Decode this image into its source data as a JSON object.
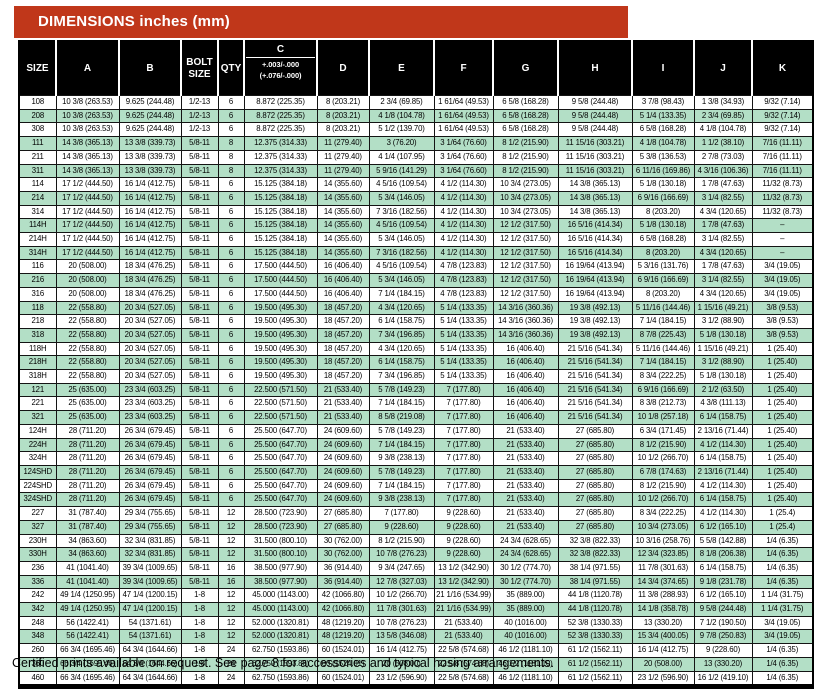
{
  "title": "DIMENSIONS inches (mm)",
  "colors": {
    "title_bar_bg": "#c0371a",
    "header_bg": "#000000",
    "row_alt_bg": "#b3dfc6",
    "text": "#000000"
  },
  "table": {
    "columns": [
      "SIZE",
      "A",
      "B",
      "BOLT SIZE",
      "QTY",
      "C",
      "D",
      "E",
      "F",
      "G",
      "H",
      "I",
      "J",
      "K"
    ],
    "c_header": {
      "label": "C",
      "tolerance_line1": "+.003/-.000",
      "tolerance_line2": "(+.076/-.000)"
    },
    "rows": [
      [
        "108",
        "10 3/8 (263.53)",
        "9.625 (244.48)",
        "1/2-13",
        "6",
        "8.872 (225.35)",
        "8 (203.21)",
        "2 3/4 (69.85)",
        "1 61/64 (49.53)",
        "6 5/8 (168.28)",
        "9 5/8 (244.48)",
        "3 7/8 (98.43)",
        "1 3/8 (34.93)",
        "9/32 (7.14)"
      ],
      [
        "208",
        "10 3/8 (263.53)",
        "9.625 (244.48)",
        "1/2-13",
        "6",
        "8.872 (225.35)",
        "8 (203.21)",
        "4 1/8 (104.78)",
        "1 61/64 (49.53)",
        "6 5/8 (168.28)",
        "9 5/8 (244.48)",
        "5 1/4 (133.35)",
        "2 3/4 (69.85)",
        "9/32 (7.14)"
      ],
      [
        "308",
        "10 3/8 (263.53)",
        "9.625 (244.48)",
        "1/2-13",
        "6",
        "8.872 (225.35)",
        "8 (203.21)",
        "5 1/2 (139.70)",
        "1 61/64 (49.53)",
        "6 5/8 (168.28)",
        "9 5/8 (244.48)",
        "6 5/8 (168.28)",
        "4 1/8 (104.78)",
        "9/32 (7.14)"
      ],
      [
        "111",
        "14 3/8 (365.13)",
        "13 3/8 (339.73)",
        "5/8-11",
        "8",
        "12.375 (314.33)",
        "11 (279.40)",
        "3 (76.20)",
        "3 1/64 (76.60)",
        "8 1/2 (215.90)",
        "11 15/16 (303.21)",
        "4 1/8 (104.78)",
        "1 1/2 (38.10)",
        "7/16 (11.11)"
      ],
      [
        "211",
        "14 3/8 (365.13)",
        "13 3/8 (339.73)",
        "5/8-11",
        "8",
        "12.375 (314.33)",
        "11 (279.40)",
        "4 1/4 (107.95)",
        "3 1/64 (76.60)",
        "8 1/2 (215.90)",
        "11 15/16 (303.21)",
        "5 3/8 (136.53)",
        "2 7/8 (73.03)",
        "7/16 (11.11)"
      ],
      [
        "311",
        "14 3/8 (365.13)",
        "13 3/8 (339.73)",
        "5/8-11",
        "8",
        "12.375 (314.33)",
        "11 (279.40)",
        "5 9/16 (141.29)",
        "3 1/64 (76.60)",
        "8 1/2 (215.90)",
        "11 15/16 (303.21)",
        "6 11/16 (169.86)",
        "4 3/16 (106.36)",
        "7/16 (11.11)"
      ],
      [
        "114",
        "17 1/2 (444.50)",
        "16 1/4 (412.75)",
        "5/8-11",
        "6",
        "15.125 (384.18)",
        "14 (355.60)",
        "4 5/16 (109.54)",
        "4 1/2 (114.30)",
        "10 3/4 (273.05)",
        "14 3/8 (365.13)",
        "5 1/8 (130.18)",
        "1 7/8 (47.63)",
        "11/32 (8.73)"
      ],
      [
        "214",
        "17 1/2 (444.50)",
        "16 1/4 (412.75)",
        "5/8-11",
        "6",
        "15.125 (384.18)",
        "14 (355.60)",
        "5 3/4 (146.05)",
        "4 1/2 (114.30)",
        "10 3/4 (273.05)",
        "14 3/8 (365.13)",
        "6 9/16 (166.69)",
        "3 1/4 (82.55)",
        "11/32 (8.73)"
      ],
      [
        "314",
        "17 1/2 (444.50)",
        "16 1/4 (412.75)",
        "5/8-11",
        "6",
        "15.125 (384.18)",
        "14 (355.60)",
        "7 3/16 (182.56)",
        "4 1/2 (114.30)",
        "10 3/4 (273.05)",
        "14 3/8 (365.13)",
        "8 (203.20)",
        "4 3/4 (120.65)",
        "11/32 (8.73)"
      ],
      [
        "114H",
        "17 1/2 (444.50)",
        "16 1/4 (412.75)",
        "5/8-11",
        "6",
        "15.125 (384.18)",
        "14 (355.60)",
        "4 5/16 (109.54)",
        "4 1/2 (114.30)",
        "12 1/2 (317.50)",
        "16 5/16 (414.34)",
        "5 1/8 (130.18)",
        "1 7/8 (47.63)",
        "–"
      ],
      [
        "214H",
        "17 1/2 (444.50)",
        "16 1/4 (412.75)",
        "5/8-11",
        "6",
        "15.125 (384.18)",
        "14 (355.60)",
        "5 3/4 (146.05)",
        "4 1/2 (114.30)",
        "12 1/2 (317.50)",
        "16 5/16 (414.34)",
        "6 5/8 (168.28)",
        "3 1/4 (82.55)",
        "–"
      ],
      [
        "314H",
        "17 1/2 (444.50)",
        "16 1/4 (412.75)",
        "5/8-11",
        "6",
        "15.125 (384.18)",
        "14 (355.60)",
        "7 3/16 (182.56)",
        "4 1/2 (114.30)",
        "12 1/2 (317.50)",
        "16 5/16 (414.34)",
        "8 (203.20)",
        "4 3/4 (120.65)",
        "–"
      ],
      [
        "116",
        "20 (508.00)",
        "18 3/4 (476.25)",
        "5/8-11",
        "6",
        "17.500 (444.50)",
        "16 (406.40)",
        "4 5/16 (109.54)",
        "4 7/8 (123.83)",
        "12 1/2 (317.50)",
        "16 19/64 (413.94)",
        "5 3/16 (131.76)",
        "1 7/8 (47.63)",
        "3/4 (19.05)"
      ],
      [
        "216",
        "20 (508.00)",
        "18 3/4 (476.25)",
        "5/8-11",
        "6",
        "17.500 (444.50)",
        "16 (406.40)",
        "5 3/4 (146.05)",
        "4 7/8 (123.83)",
        "12 1/2 (317.50)",
        "16 19/64 (413.94)",
        "6 9/16 (166.69)",
        "3 1/4 (82.55)",
        "3/4 (19.05)"
      ],
      [
        "316",
        "20 (508.00)",
        "18 3/4 (476.25)",
        "5/8-11",
        "6",
        "17.500 (444.50)",
        "16 (406.40)",
        "7 1/4 (184.15)",
        "4 7/8 (123.83)",
        "12 1/2 (317.50)",
        "16 19/64 (413.94)",
        "8 (203.20)",
        "4 3/4 (120.65)",
        "3/4 (19.05)"
      ],
      [
        "118",
        "22 (558.80)",
        "20 3/4 (527.05)",
        "5/8-11",
        "6",
        "19.500 (495.30)",
        "18 (457.20)",
        "4 3/4 (120.65)",
        "5 1/4 (133.35)",
        "14 3/16 (360.36)",
        "19 3/8 (492.13)",
        "5 11/16 (144.46)",
        "1 15/16 (49.21)",
        "3/8 (9.53)"
      ],
      [
        "218",
        "22 (558.80)",
        "20 3/4 (527.05)",
        "5/8-11",
        "6",
        "19.500 (495.30)",
        "18 (457.20)",
        "6 1/4 (158.75)",
        "5 1/4 (133.35)",
        "14 3/16 (360.36)",
        "19 3/8 (492.13)",
        "7 1/4 (184.15)",
        "3 1/2 (88.90)",
        "3/8 (9.53)"
      ],
      [
        "318",
        "22 (558.80)",
        "20 3/4 (527.05)",
        "5/8-11",
        "6",
        "19.500 (495.30)",
        "18 (457.20)",
        "7 3/4 (196.85)",
        "5 1/4 (133.35)",
        "14 3/16 (360.36)",
        "19 3/8 (492.13)",
        "8 7/8 (225.43)",
        "5 1/8 (130.18)",
        "3/8 (9.53)"
      ],
      [
        "118H",
        "22 (558.80)",
        "20 3/4 (527.05)",
        "5/8-11",
        "6",
        "19.500 (495.30)",
        "18 (457.20)",
        "4 3/4 (120.65)",
        "5 1/4 (133.35)",
        "16 (406.40)",
        "21 5/16 (541.34)",
        "5 11/16 (144.46)",
        "1 15/16 (49.21)",
        "1 (25.40)"
      ],
      [
        "218H",
        "22 (558.80)",
        "20 3/4 (527.05)",
        "5/8-11",
        "6",
        "19.500 (495.30)",
        "18 (457.20)",
        "6 1/4 (158.75)",
        "5 1/4 (133.35)",
        "16 (406.40)",
        "21 5/16 (541.34)",
        "7 1/4 (184.15)",
        "3 1/2 (88.90)",
        "1 (25.40)"
      ],
      [
        "318H",
        "22 (558.80)",
        "20 3/4 (527.05)",
        "5/8-11",
        "6",
        "19.500 (495.30)",
        "18 (457.20)",
        "7 3/4 (196.85)",
        "5 1/4 (133.35)",
        "16 (406.40)",
        "21 5/16 (541.34)",
        "8 3/4 (222.25)",
        "5 1/8 (130.18)",
        "1 (25.40)"
      ],
      [
        "121",
        "25 (635.00)",
        "23 3/4 (603.25)",
        "5/8-11",
        "6",
        "22.500 (571.50)",
        "21 (533.40)",
        "5 7/8 (149.23)",
        "7 (177.80)",
        "16 (406.40)",
        "21 5/16 (541.34)",
        "6 9/16 (166.69)",
        "2 1/2 (63.50)",
        "1 (25.40)"
      ],
      [
        "221",
        "25 (635.00)",
        "23 3/4 (603.25)",
        "5/8-11",
        "6",
        "22.500 (571.50)",
        "21 (533.40)",
        "7 1/4 (184.15)",
        "7 (177.80)",
        "16 (406.40)",
        "21 5/16 (541.34)",
        "8 3/8 (212.73)",
        "4 3/8 (111.13)",
        "1 (25.40)"
      ],
      [
        "321",
        "25 (635.00)",
        "23 3/4 (603.25)",
        "5/8-11",
        "6",
        "22.500 (571.50)",
        "21 (533.40)",
        "8 5/8 (219.08)",
        "7 (177.80)",
        "16 (406.40)",
        "21 5/16 (541.34)",
        "10 1/8 (257.18)",
        "6 1/4 (158.75)",
        "1 (25.40)"
      ],
      [
        "124H",
        "28 (711.20)",
        "26 3/4 (679.45)",
        "5/8-11",
        "6",
        "25.500 (647.70)",
        "24 (609.60)",
        "5 7/8 (149.23)",
        "7 (177.80)",
        "21 (533.40)",
        "27 (685.80)",
        "6 3/4 (171.45)",
        "2 13/16 (71.44)",
        "1 (25.40)"
      ],
      [
        "224H",
        "28 (711.20)",
        "26 3/4 (679.45)",
        "5/8-11",
        "6",
        "25.500 (647.70)",
        "24 (609.60)",
        "7 1/4 (184.15)",
        "7 (177.80)",
        "21 (533.40)",
        "27 (685.80)",
        "8 1/2 (215.90)",
        "4 1/2 (114.30)",
        "1 (25.40)"
      ],
      [
        "324H",
        "28 (711.20)",
        "26 3/4 (679.45)",
        "5/8-11",
        "6",
        "25.500 (647.70)",
        "24 (609.60)",
        "9 3/8 (238.13)",
        "7 (177.80)",
        "21 (533.40)",
        "27 (685.80)",
        "10 1/2 (266.70)",
        "6 1/4 (158.75)",
        "1 (25.40)"
      ],
      [
        "124SHD",
        "28 (711.20)",
        "26 3/4 (679.45)",
        "5/8-11",
        "6",
        "25.500 (647.70)",
        "24 (609.60)",
        "5 7/8 (149.23)",
        "7 (177.80)",
        "21 (533.40)",
        "27 (685.80)",
        "6 7/8 (174.63)",
        "2 13/16 (71.44)",
        "1 (25.40)"
      ],
      [
        "224SHD",
        "28 (711.20)",
        "26 3/4 (679.45)",
        "5/8-11",
        "6",
        "25.500 (647.70)",
        "24 (609.60)",
        "7 1/4 (184.15)",
        "7 (177.80)",
        "21 (533.40)",
        "27 (685.80)",
        "8 1/2 (215.90)",
        "4 1/2 (114.30)",
        "1 (25.40)"
      ],
      [
        "324SHD",
        "28 (711.20)",
        "26 3/4 (679.45)",
        "5/8-11",
        "6",
        "25.500 (647.70)",
        "24 (609.60)",
        "9 3/8 (238.13)",
        "7 (177.80)",
        "21 (533.40)",
        "27 (685.80)",
        "10 1/2 (266.70)",
        "6 1/4 (158.75)",
        "1 (25.40)"
      ],
      [
        "227",
        "31 (787.40)",
        "29 3/4 (755.65)",
        "5/8-11",
        "12",
        "28.500 (723.90)",
        "27 (685.80)",
        "7 (177.80)",
        "9 (228.60)",
        "21 (533.40)",
        "27 (685.80)",
        "8 3/4 (222.25)",
        "4 1/2 (114.30)",
        "1 (25.4)"
      ],
      [
        "327",
        "31 (787.40)",
        "29 3/4 (755.65)",
        "5/8-11",
        "12",
        "28.500 (723.90)",
        "27 (685.80)",
        "9 (228.60)",
        "9 (228.60)",
        "21 (533.40)",
        "27 (685.80)",
        "10 3/4 (273.05)",
        "6 1/2 (165.10)",
        "1 (25.4)"
      ],
      [
        "230H",
        "34 (863.60)",
        "32 3/4 (831.85)",
        "5/8-11",
        "12",
        "31.500 (800.10)",
        "30 (762.00)",
        "8 1/2 (215.90)",
        "9 (228.60)",
        "24 3/4 (628.65)",
        "32 3/8 (822.33)",
        "10 3/16 (258.76)",
        "5 5/8 (142.88)",
        "1/4 (6.35)"
      ],
      [
        "330H",
        "34 (863.60)",
        "32 3/4 (831.85)",
        "5/8-11",
        "12",
        "31.500 (800.10)",
        "30 (762.00)",
        "10 7/8 (276.23)",
        "9 (228.60)",
        "24 3/4 (628.65)",
        "32 3/8 (822.33)",
        "12 3/4 (323.85)",
        "8 1/8 (206.38)",
        "1/4 (6.35)"
      ],
      [
        "236",
        "41 (1041.40)",
        "39 3/4 (1009.65)",
        "5/8-11",
        "16",
        "38.500 (977.90)",
        "36 (914.40)",
        "9 3/4 (247.65)",
        "13 1/2 (342.90)",
        "30 1/2 (774.70)",
        "38 1/4 (971.55)",
        "11 7/8 (301.63)",
        "6 1/4 (158.75)",
        "1/4 (6.35)"
      ],
      [
        "336",
        "41 (1041.40)",
        "39 3/4 (1009.65)",
        "5/8-11",
        "16",
        "38.500 (977.90)",
        "36 (914.40)",
        "12 7/8 (327.03)",
        "13 1/2 (342.90)",
        "30 1/2 (774.70)",
        "38 1/4 (971.55)",
        "14 3/4 (374.65)",
        "9 1/8 (231.78)",
        "1/4 (6.35)"
      ],
      [
        "242",
        "49 1/4 (1250.95)",
        "47 1/4 (1200.15)",
        "1-8",
        "12",
        "45.000 (1143.00)",
        "42 (1066.80)",
        "10 1/2 (266.70)",
        "21 1/16 (534.99)",
        "35 (889.00)",
        "44 1/8 (1120.78)",
        "11 3/8 (288.93)",
        "6 1/2 (165.10)",
        "1 1/4 (31.75)"
      ],
      [
        "342",
        "49 1/4 (1250.95)",
        "47 1/4 (1200.15)",
        "1-8",
        "12",
        "45.000 (1143.00)",
        "42 (1066.80)",
        "11 7/8 (301.63)",
        "21 1/16 (534.99)",
        "35 (889.00)",
        "44 1/8 (1120.78)",
        "14 1/8 (358.78)",
        "9 5/8 (244.48)",
        "1 1/4 (31.75)"
      ],
      [
        "248",
        "56 (1422.41)",
        "54 (1371.61)",
        "1-8",
        "12",
        "52.000 (1320.81)",
        "48 (1219.20)",
        "10 7/8 (276.23)",
        "21 (533.40)",
        "40 (1016.00)",
        "52 3/8 (1330.33)",
        "13 (330.20)",
        "7 1/2 (190.50)",
        "3/4 (19.05)"
      ],
      [
        "348",
        "56 (1422.41)",
        "54 (1371.61)",
        "1-8",
        "12",
        "52.000 (1320.81)",
        "48 (1219.20)",
        "13 5/8 (346.08)",
        "21 (533.40)",
        "40 (1016.00)",
        "52 3/8 (1330.33)",
        "15 3/4 (400.05)",
        "9 7/8 (250.83)",
        "3/4 (19.05)"
      ],
      [
        "260",
        "66 3/4 (1695.46)",
        "64 3/4 (1644.66)",
        "1-8",
        "24",
        "62.750 (1593.86)",
        "60 (1524.01)",
        "16 1/4 (412.75)",
        "22 5/8 (574.68)",
        "46 1/2 (1181.10)",
        "61 1/2 (1562.11)",
        "16 1/4 (412.75)",
        "9 (228.60)",
        "1/4 (6.35)"
      ],
      [
        "360",
        "66 3/4 (1695.46)",
        "64 3/4 (1644.66)",
        "1-8",
        "24",
        "62.750 (1593.86)",
        "60 (1524.01)",
        "20 (508.00)",
        "22 5/8 (574.68)",
        "46 1/2 (1181.10)",
        "61 1/2 (1562.11)",
        "20 (508.00)",
        "13 (330.20)",
        "1/4 (6.35)"
      ],
      [
        "460",
        "66 3/4 (1695.46)",
        "64 3/4 (1644.66)",
        "1-8",
        "24",
        "62.750 (1593.86)",
        "60 (1524.01)",
        "23 1/2 (596.90)",
        "22 5/8 (574.68)",
        "46 1/2 (1181.10)",
        "61 1/2 (1562.11)",
        "23 1/2 (596.90)",
        "16 1/2 (419.10)",
        "1/4 (6.35)"
      ]
    ]
  },
  "footer": "Certified prints available on request. See page 8 for accessories and typical hosing arrangements."
}
